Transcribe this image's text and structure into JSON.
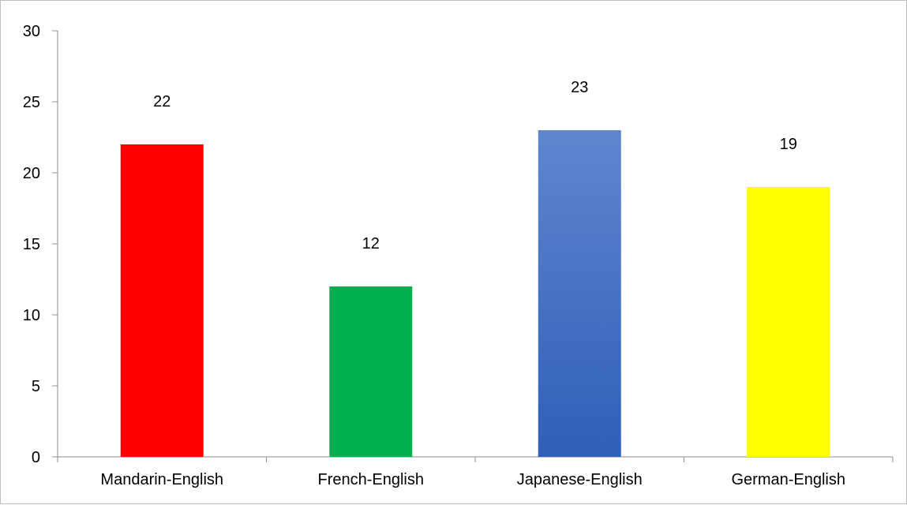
{
  "chart_data": {
    "type": "bar",
    "title": "",
    "xlabel": "",
    "ylabel": "",
    "categories": [
      "Mandarin-English",
      "French-English",
      "Japanese-English",
      "German-English"
    ],
    "values": [
      22,
      12,
      23,
      19
    ],
    "data_labels": [
      "22",
      "12",
      "23",
      "19"
    ],
    "colors": [
      "#ff0000",
      "#00b050",
      "#4472c4",
      "#ffff00"
    ],
    "ylim": [
      0,
      30
    ],
    "yticks": [
      0,
      5,
      10,
      15,
      20,
      25,
      30
    ],
    "grid": false,
    "legend": "none"
  }
}
